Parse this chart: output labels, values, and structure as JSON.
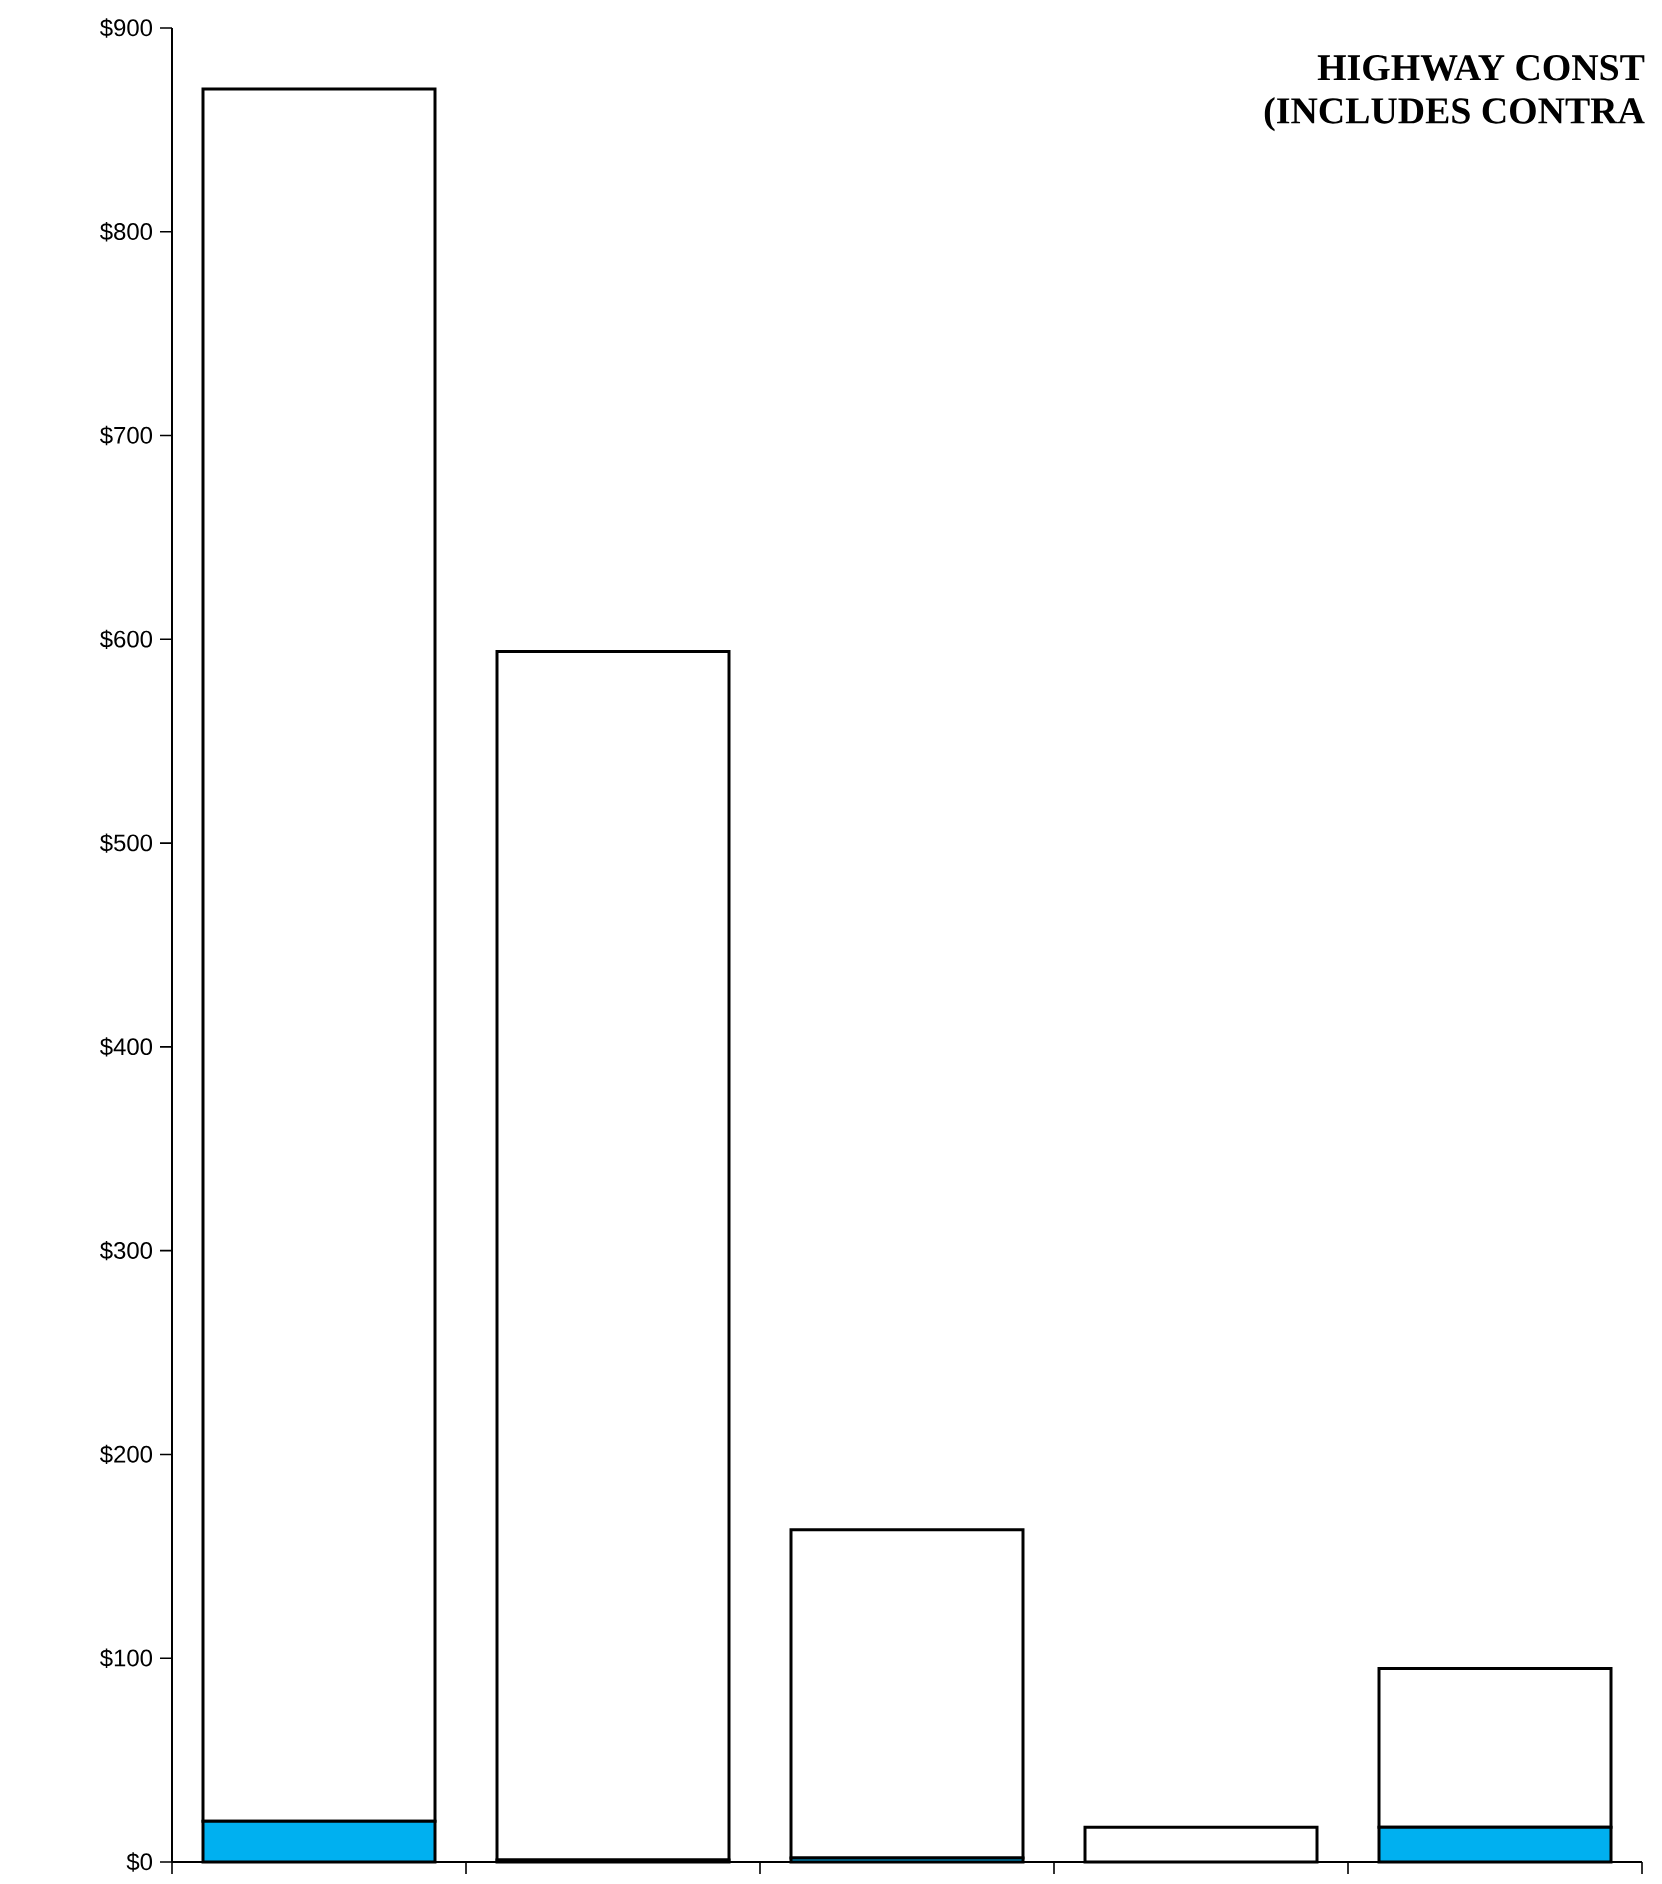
{
  "chart_data": {
    "type": "bar",
    "title": "HIGHWAY CONST",
    "subtitle": "(INCLUDES CONTRA",
    "categories": [
      null,
      null,
      null,
      null,
      null
    ],
    "stacked": true,
    "series": [
      {
        "color": "#00b0f0",
        "values": [
          20,
          1,
          2,
          0,
          17
        ]
      },
      {
        "color": "#ffffff",
        "values": [
          850,
          593,
          161,
          17,
          78
        ]
      }
    ],
    "ylim": [
      0,
      900
    ],
    "yticks": [
      {
        "value": 0,
        "label": "$0"
      },
      {
        "value": 100,
        "label": "$100"
      },
      {
        "value": 200,
        "label": "$200"
      },
      {
        "value": 300,
        "label": "$300"
      },
      {
        "value": 400,
        "label": "$400"
      },
      {
        "value": 500,
        "label": "$500"
      },
      {
        "value": 600,
        "label": "$600"
      },
      {
        "value": 700,
        "label": "$700"
      },
      {
        "value": 800,
        "label": "$800"
      },
      {
        "value": 900,
        "label": "$900"
      }
    ],
    "tick_labels": "y",
    "grid": false
  }
}
